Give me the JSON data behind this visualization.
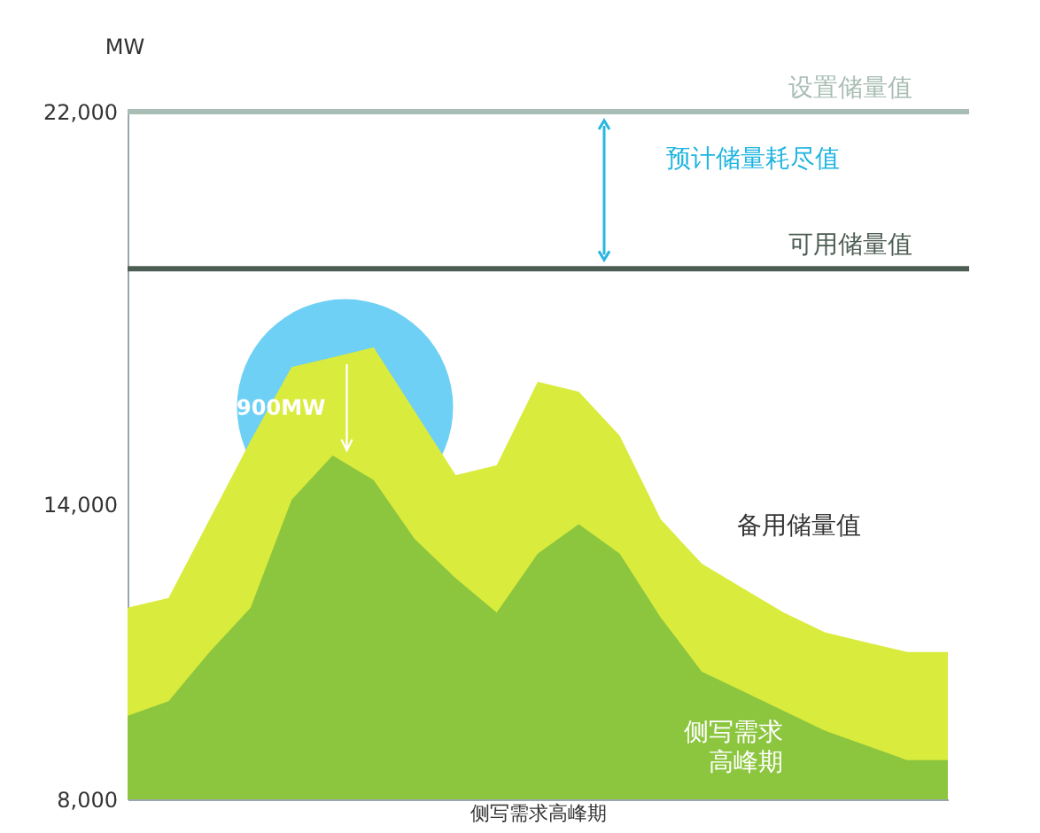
{
  "chart_data": {
    "type": "area",
    "xlabel": "侧写需求高峰期",
    "ylabel": "MW",
    "categories": [
      null,
      null,
      null,
      null,
      null,
      null,
      null,
      null,
      null,
      null,
      null,
      null,
      null,
      null,
      null,
      null,
      null,
      null,
      null,
      null,
      null
    ],
    "series": [
      {
        "name": "备用储量值",
        "color": "#d9eb3c",
        "values": [
          11900,
          12100,
          13700,
          15300,
          16800,
          17000,
          17200,
          15900,
          14600,
          14800,
          16500,
          16300,
          15400,
          13700,
          12800,
          12300,
          11800,
          11400,
          11200,
          11000,
          11000
        ]
      },
      {
        "name": "侧写需求高峰期",
        "color": "#8cc63f",
        "values": [
          9700,
          10000,
          11000,
          11900,
          14100,
          15000,
          14500,
          13300,
          12500,
          11800,
          13000,
          13600,
          13000,
          11700,
          10600,
          10200,
          9800,
          9400,
          9100,
          8800,
          8800
        ]
      }
    ],
    "ylim": [
      8000,
      22000
    ],
    "yticks": [
      {
        "value": 8000,
        "label": "8,000"
      },
      {
        "value": 14000,
        "label": "14,000"
      },
      {
        "value": 22000,
        "label": "22,000"
      }
    ],
    "ref_lines": [
      {
        "axis": "y",
        "value": 22000,
        "label": "设置储量值",
        "color": "#a8bdb3"
      },
      {
        "axis": "y",
        "value": 18800,
        "label": "可用储量值",
        "color": "#4c5d53"
      }
    ],
    "annotations": [
      "预计储量耗尽值",
      "900MW"
    ],
    "grid": false,
    "tick_labels": "y",
    "marker": "none"
  }
}
